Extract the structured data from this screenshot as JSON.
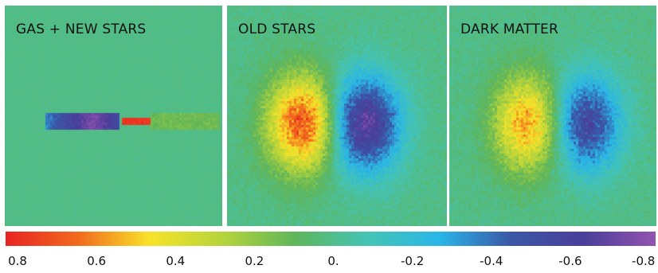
{
  "panels": [
    {
      "label": "GAS + NEW STARS",
      "kind": "gas"
    },
    {
      "label": "OLD STARS",
      "kind": "old"
    },
    {
      "label": "DARK MATTER",
      "kind": "dark"
    }
  ],
  "colorbar": {
    "ticks": [
      "0.8",
      "0.6",
      "0.4",
      "0.2",
      "0.",
      "-0.2",
      "-0.4",
      "-0.6",
      "-0.8"
    ],
    "min": -0.8,
    "max": 0.8,
    "stops": [
      "#e82323",
      "#f26a1e",
      "#f8e32a",
      "#b6d43b",
      "#5fb65a",
      "#45c4b4",
      "#2ab6e8",
      "#3b57a7",
      "#4a3e9a",
      "#9353b1"
    ]
  }
}
